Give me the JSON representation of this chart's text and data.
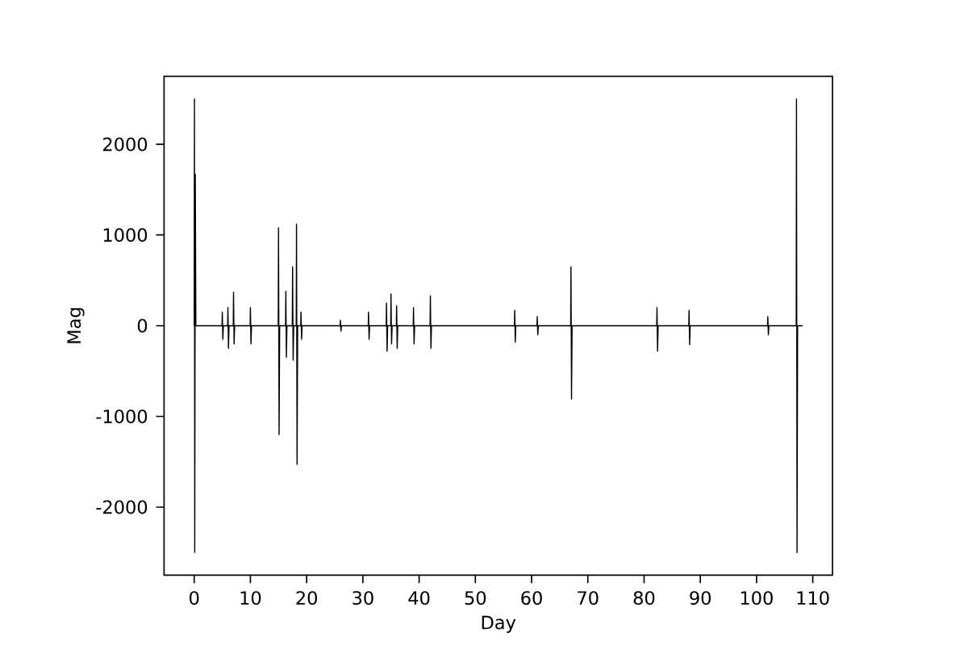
{
  "chart_data": {
    "type": "line",
    "xlabel": "Day",
    "ylabel": "Mag",
    "xlim": [
      -5.35,
      113.5
    ],
    "ylim": [
      -2750,
      2750
    ],
    "xticks": [
      0,
      10,
      20,
      30,
      40,
      50,
      60,
      70,
      80,
      90,
      100,
      110
    ],
    "yticks": [
      -2000,
      -1000,
      0,
      1000,
      2000
    ],
    "grid": false,
    "line_style": "solid",
    "series": [
      {
        "color": "#000000",
        "x": [
          0,
          0.05,
          0.1,
          0.2,
          0.3,
          4.95,
          5,
          5.1,
          5.2,
          5.95,
          6,
          6.1,
          6.2,
          6.95,
          7,
          7.1,
          7.2,
          9.95,
          10,
          10.1,
          10.2,
          14.95,
          15,
          15.1,
          15.2,
          16.25,
          16.3,
          16.4,
          16.5,
          17.45,
          17.5,
          17.6,
          17.7,
          18.15,
          18.2,
          18.3,
          18.4,
          18.95,
          19,
          19.1,
          19.2,
          25.95,
          26,
          26.1,
          26.2,
          30.95,
          31,
          31.1,
          31.2,
          34.15,
          34.2,
          34.3,
          34.4,
          34.95,
          35,
          35.1,
          35.2,
          35.95,
          36,
          36.1,
          36.2,
          38.95,
          39,
          39.1,
          39.2,
          41.95,
          42,
          42.1,
          42.2,
          56.95,
          57,
          57.1,
          57.2,
          60.95,
          61,
          61.1,
          61.2,
          66.95,
          67,
          67.1,
          67.2,
          82.25,
          82.3,
          82.4,
          82.5,
          87.95,
          88,
          88.1,
          88.2,
          101.95,
          102,
          102.1,
          102.2,
          107.05,
          107.1,
          107.2,
          107.3,
          108.2
        ],
        "values": [
          0,
          2500,
          -2500,
          1670,
          0,
          0,
          150,
          -150,
          0,
          0,
          200,
          -250,
          0,
          0,
          370,
          -200,
          0,
          0,
          200,
          -200,
          0,
          0,
          1080,
          -1200,
          0,
          0,
          380,
          -350,
          0,
          0,
          650,
          -380,
          0,
          0,
          1120,
          -1530,
          0,
          0,
          150,
          -150,
          0,
          0,
          60,
          -60,
          0,
          0,
          150,
          -150,
          0,
          0,
          250,
          -280,
          0,
          0,
          350,
          -200,
          0,
          0,
          220,
          -250,
          0,
          0,
          200,
          -200,
          0,
          0,
          330,
          -250,
          0,
          0,
          170,
          -180,
          0,
          0,
          100,
          -100,
          0,
          0,
          650,
          -810,
          0,
          0,
          200,
          -280,
          0,
          0,
          170,
          -210,
          0,
          0,
          100,
          -100,
          0,
          0,
          2500,
          -2500,
          0,
          0
        ]
      }
    ]
  }
}
